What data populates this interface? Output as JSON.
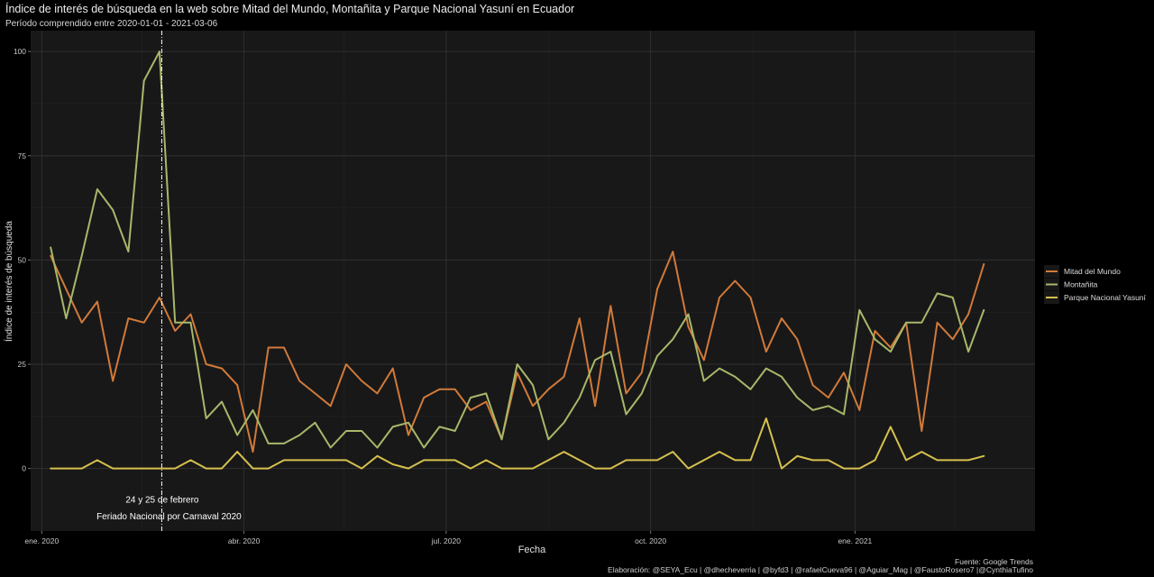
{
  "chart_data": {
    "type": "line",
    "title": "Índice de interés de búsqueda en la web sobre Mitad del Mundo, Montañita y Parque Nacional Yasuní en Ecuador",
    "subtitle": "Período comprendido entre 2020-01-01 - 2021-03-06",
    "xlabel": "Fecha",
    "ylabel": "Índice de interés de búsqueda",
    "ylim": [
      -15,
      105
    ],
    "y_ticks": [
      0,
      25,
      50,
      75,
      100
    ],
    "x_range": [
      "2019-12-27",
      "2021-03-23"
    ],
    "x_ticks": [
      {
        "date": "2020-01-01",
        "label": "ene. 2020"
      },
      {
        "date": "2020-04-01",
        "label": "abr. 2020"
      },
      {
        "date": "2020-07-01",
        "label": "jul. 2020"
      },
      {
        "date": "2020-10-01",
        "label": "oct. 2020"
      },
      {
        "date": "2021-01-01",
        "label": "ene. 2021"
      }
    ],
    "x_minor_ticks": [
      "2020-02-15",
      "2020-05-16",
      "2020-08-16",
      "2020-11-16",
      "2021-02-15"
    ],
    "grid": true,
    "legend_position": "right",
    "start_date": "2020-01-05",
    "step_days": 7,
    "series": [
      {
        "name": "Mitad del Mundo",
        "color": "#d17a3a",
        "values": [
          51,
          43,
          35,
          40,
          21,
          36,
          35,
          41,
          33,
          37,
          25,
          24,
          20,
          4,
          29,
          29,
          21,
          18,
          15,
          25,
          21,
          18,
          24,
          8,
          17,
          19,
          19,
          14,
          16,
          7,
          23,
          15,
          19,
          22,
          36,
          15,
          39,
          18,
          23,
          43,
          52,
          34,
          26,
          41,
          45,
          41,
          28,
          36,
          31,
          20,
          17,
          23,
          14,
          33,
          29,
          35,
          9,
          35,
          31,
          37,
          49
        ]
      },
      {
        "name": "Montañita",
        "color": "#a7b86a",
        "values": [
          53,
          36,
          51,
          67,
          62,
          52,
          93,
          100,
          35,
          35,
          12,
          16,
          8,
          14,
          6,
          6,
          8,
          11,
          5,
          9,
          9,
          5,
          10,
          11,
          5,
          10,
          9,
          17,
          18,
          7,
          25,
          20,
          7,
          11,
          17,
          26,
          28,
          13,
          18,
          27,
          31,
          37,
          21,
          24,
          22,
          19,
          24,
          22,
          17,
          14,
          15,
          13,
          38,
          31,
          28,
          35,
          35,
          42,
          41,
          28,
          38
        ]
      },
      {
        "name": "Parque Nacional Yasuní",
        "color": "#d6c04e",
        "values": [
          0,
          0,
          0,
          2,
          0,
          0,
          0,
          0,
          0,
          2,
          0,
          0,
          4,
          0,
          0,
          2,
          2,
          2,
          2,
          2,
          0,
          3,
          1,
          0,
          2,
          2,
          2,
          0,
          2,
          0,
          0,
          0,
          2,
          4,
          2,
          0,
          0,
          2,
          2,
          2,
          4,
          0,
          2,
          4,
          2,
          2,
          12,
          0,
          3,
          2,
          2,
          0,
          0,
          2,
          10,
          2,
          4,
          2,
          2,
          2,
          3
        ]
      }
    ],
    "annotation": {
      "date": "2020-02-24",
      "line1": "24 y 25 de febrero",
      "line2": "Feriado Nacional por Carnaval 2020"
    },
    "caption_source": "Fuente: Google Trends",
    "caption_credits": "Elaboración: @SEYA_Ecu | @dhecheverria | @byfd3 | @rafaelCueva96 | @Aguiar_Mag | @FaustoRosero7 |@CynthiaTufino"
  }
}
